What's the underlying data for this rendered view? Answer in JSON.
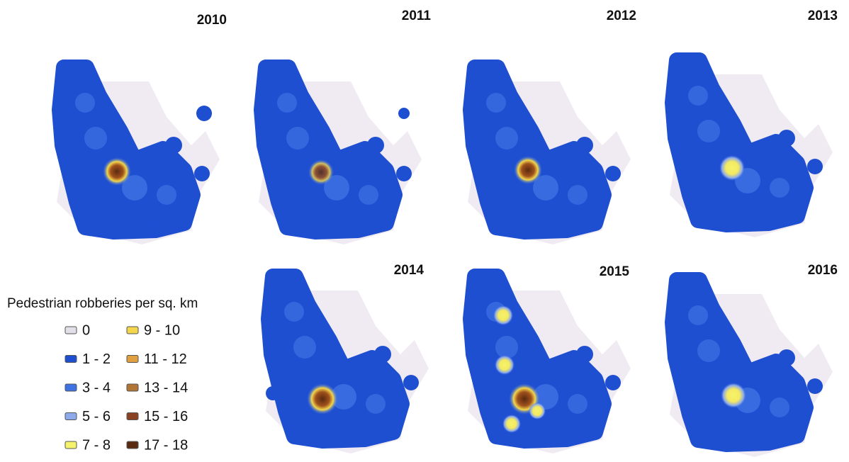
{
  "panels": [
    {
      "year": "2010"
    },
    {
      "year": "2011"
    },
    {
      "year": "2012"
    },
    {
      "year": "2013"
    },
    {
      "year": "2014"
    },
    {
      "year": "2015"
    },
    {
      "year": "2016"
    }
  ],
  "legend": {
    "title": "Pedestrian robberies per sq. km",
    "items": [
      {
        "label": "0",
        "color": "#e2dfe8"
      },
      {
        "label": "1 - 2",
        "color": "#1f4fd1"
      },
      {
        "label": "3 - 4",
        "color": "#3d72e2"
      },
      {
        "label": "5 - 6",
        "color": "#8eaaea"
      },
      {
        "label": "7 - 8",
        "color": "#f6f26c"
      },
      {
        "label": "9 - 10",
        "color": "#f3d64c"
      },
      {
        "label": "11 - 12",
        "color": "#e0a040"
      },
      {
        "label": "13 - 14",
        "color": "#b07434"
      },
      {
        "label": "15 - 16",
        "color": "#8a4222"
      },
      {
        "label": "17 - 18",
        "color": "#5a2a10"
      }
    ]
  }
}
